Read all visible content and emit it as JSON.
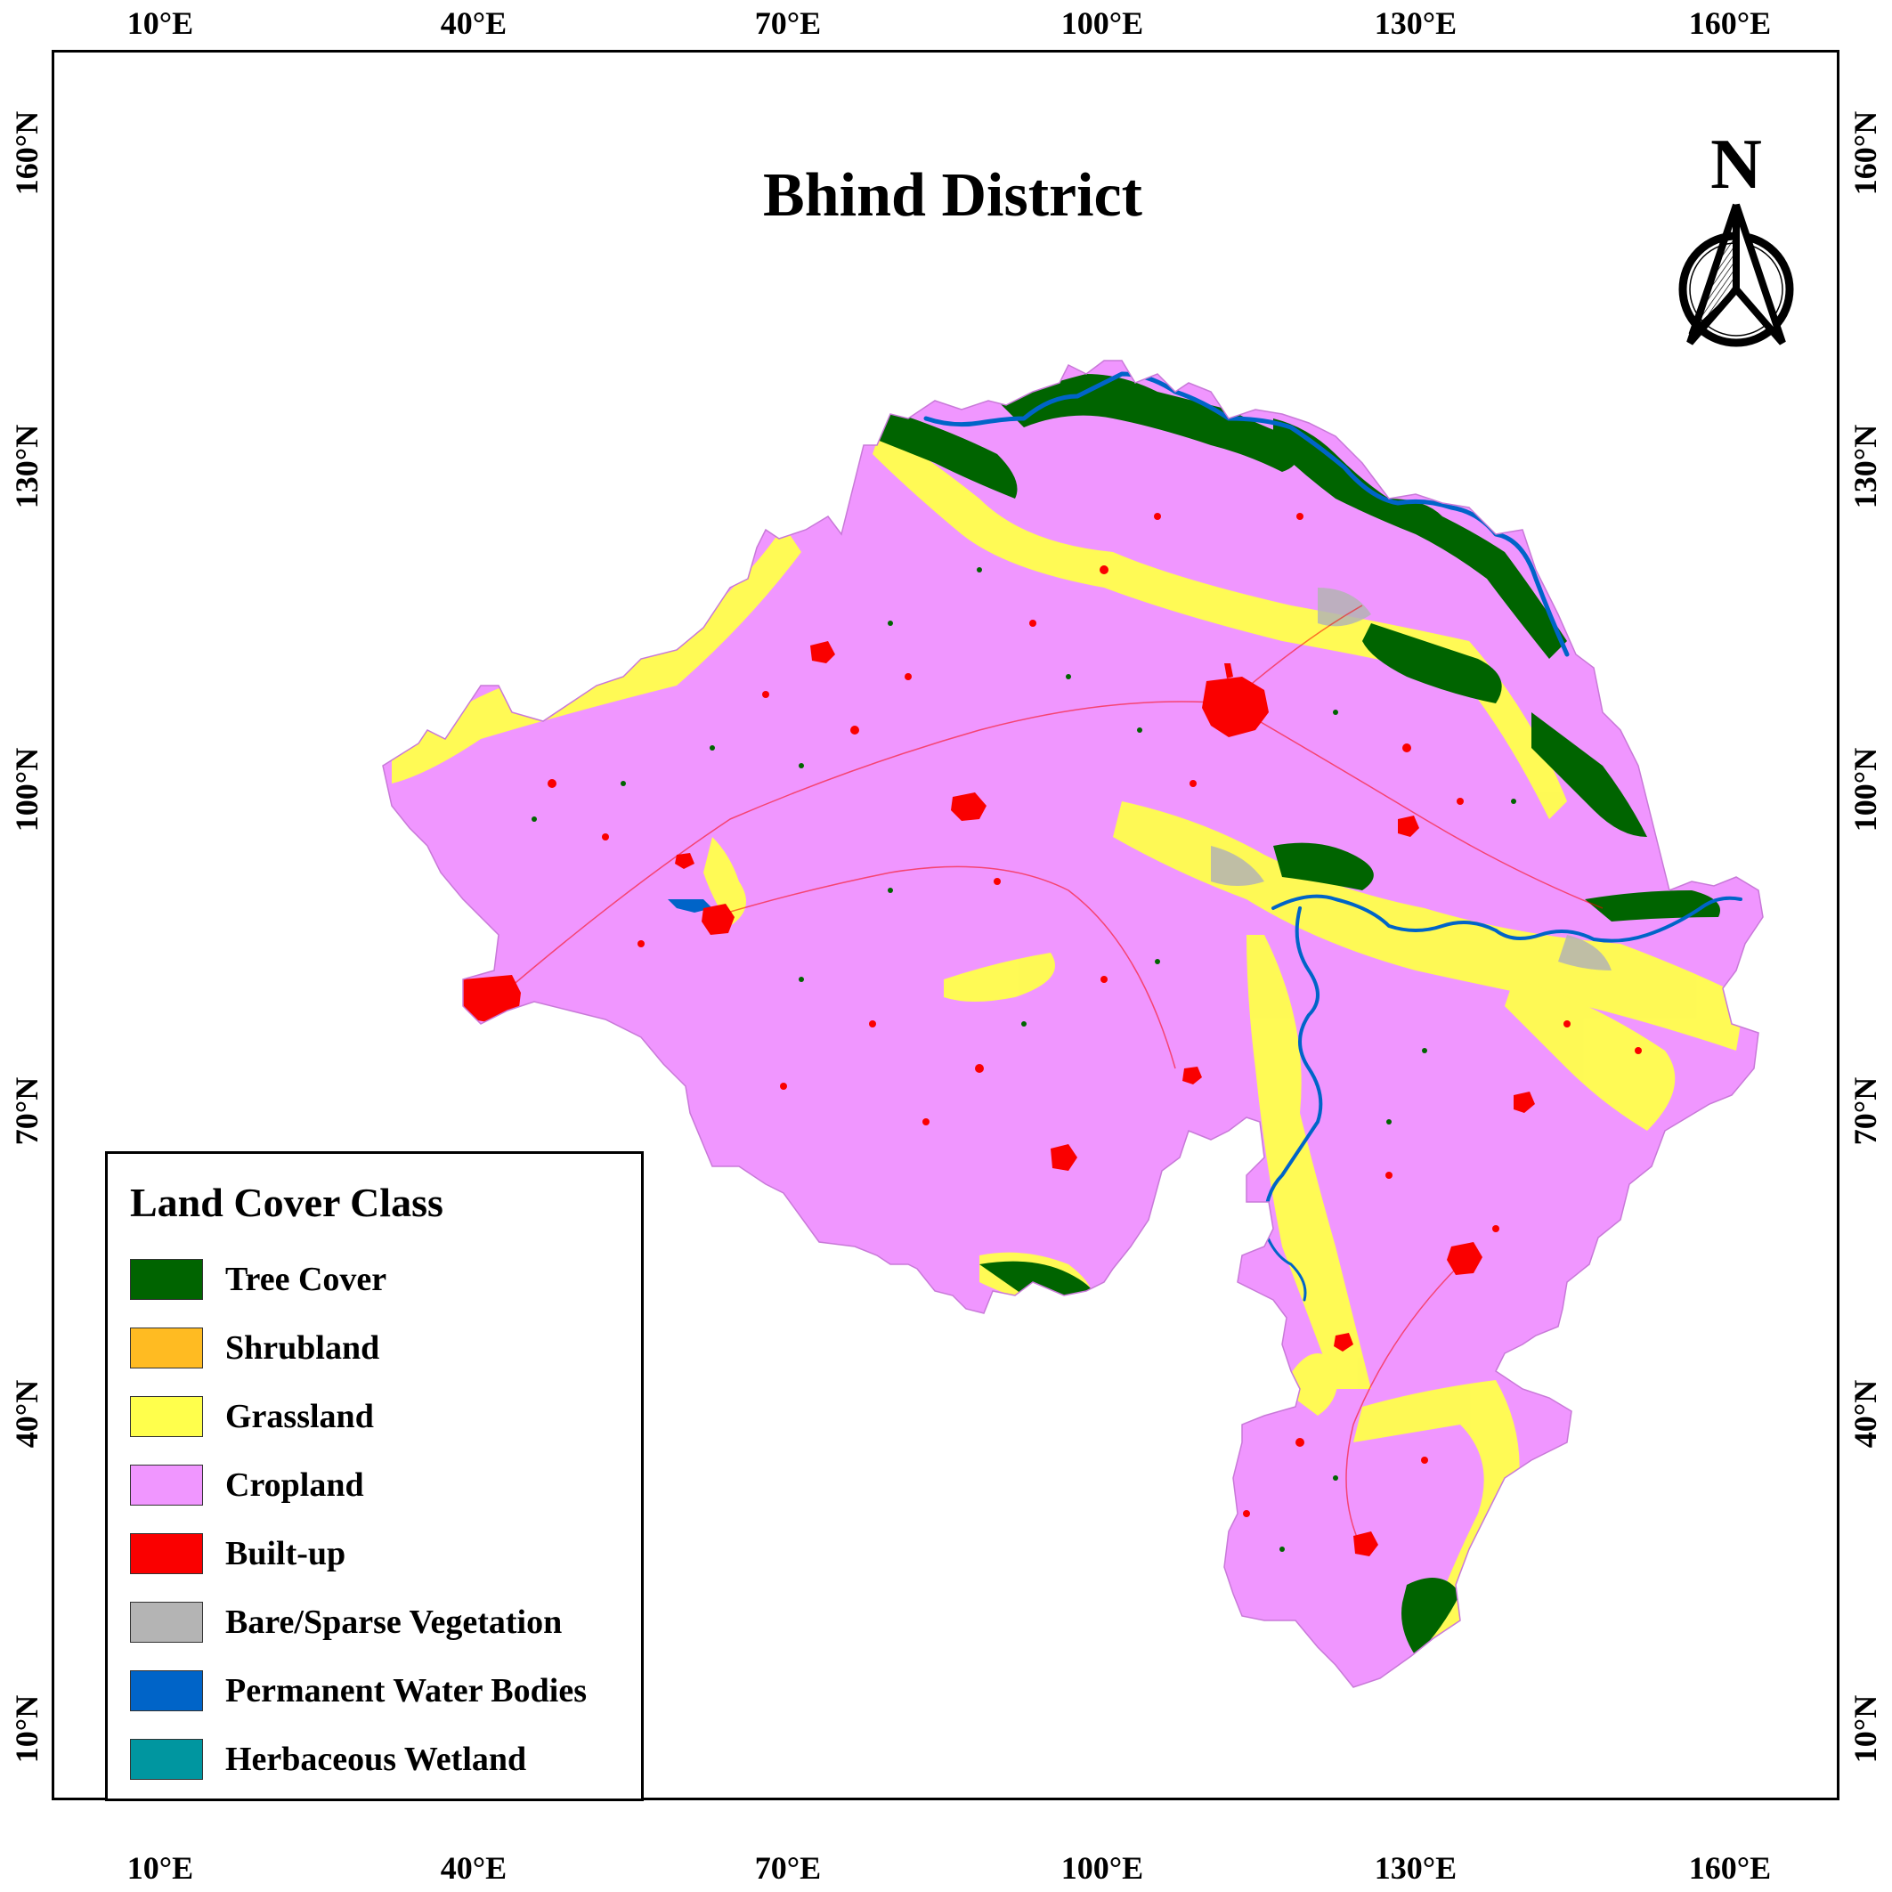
{
  "map": {
    "title": "Bhind District",
    "north_label": "N",
    "lon_ticks": [
      "10°E",
      "40°E",
      "70°E",
      "100°E",
      "130°E",
      "160°E"
    ],
    "lat_ticks": [
      "160°N",
      "130°N",
      "100°N",
      "70°N",
      "40°N",
      "10°N"
    ]
  },
  "legend": {
    "title": "Land Cover Class",
    "items": [
      {
        "label": "Tree Cover",
        "color": "#006400"
      },
      {
        "label": "Shrubland",
        "color": "#FFBB22"
      },
      {
        "label": "Grassland",
        "color": "#FFFF4C"
      },
      {
        "label": "Cropland",
        "color": "#F096FF"
      },
      {
        "label": "Built-up",
        "color": "#FA0000"
      },
      {
        "label": "Bare/Sparse Vegetation",
        "color": "#B4B4B4"
      },
      {
        "label": "Permanent Water Bodies",
        "color": "#0064C8"
      },
      {
        "label": "Herbaceous Wetland",
        "color": "#0096A0"
      }
    ]
  }
}
